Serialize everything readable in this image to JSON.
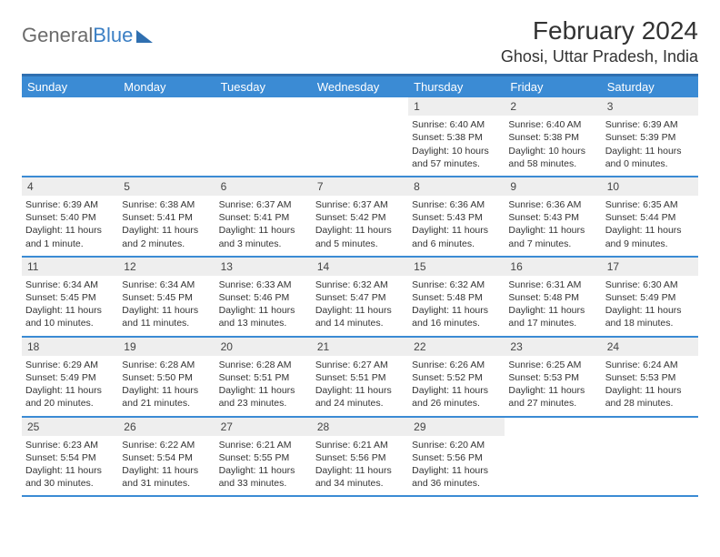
{
  "logo": {
    "textA": "General",
    "textB": "Blue"
  },
  "title": "February 2024",
  "location": "Ghosi, Uttar Pradesh, India",
  "day_headers": [
    "Sunday",
    "Monday",
    "Tuesday",
    "Wednesday",
    "Thursday",
    "Friday",
    "Saturday"
  ],
  "colors": {
    "header_bg": "#3b8bd4",
    "border": "#2f6fb0",
    "daynum_bg": "#eeeeee",
    "text": "#333333"
  },
  "weeks": [
    [
      {
        "empty": true
      },
      {
        "empty": true
      },
      {
        "empty": true
      },
      {
        "empty": true
      },
      {
        "day": "1",
        "sunrise": "Sunrise: 6:40 AM",
        "sunset": "Sunset: 5:38 PM",
        "daylight": "Daylight: 10 hours and 57 minutes."
      },
      {
        "day": "2",
        "sunrise": "Sunrise: 6:40 AM",
        "sunset": "Sunset: 5:38 PM",
        "daylight": "Daylight: 10 hours and 58 minutes."
      },
      {
        "day": "3",
        "sunrise": "Sunrise: 6:39 AM",
        "sunset": "Sunset: 5:39 PM",
        "daylight": "Daylight: 11 hours and 0 minutes."
      }
    ],
    [
      {
        "day": "4",
        "sunrise": "Sunrise: 6:39 AM",
        "sunset": "Sunset: 5:40 PM",
        "daylight": "Daylight: 11 hours and 1 minute."
      },
      {
        "day": "5",
        "sunrise": "Sunrise: 6:38 AM",
        "sunset": "Sunset: 5:41 PM",
        "daylight": "Daylight: 11 hours and 2 minutes."
      },
      {
        "day": "6",
        "sunrise": "Sunrise: 6:37 AM",
        "sunset": "Sunset: 5:41 PM",
        "daylight": "Daylight: 11 hours and 3 minutes."
      },
      {
        "day": "7",
        "sunrise": "Sunrise: 6:37 AM",
        "sunset": "Sunset: 5:42 PM",
        "daylight": "Daylight: 11 hours and 5 minutes."
      },
      {
        "day": "8",
        "sunrise": "Sunrise: 6:36 AM",
        "sunset": "Sunset: 5:43 PM",
        "daylight": "Daylight: 11 hours and 6 minutes."
      },
      {
        "day": "9",
        "sunrise": "Sunrise: 6:36 AM",
        "sunset": "Sunset: 5:43 PM",
        "daylight": "Daylight: 11 hours and 7 minutes."
      },
      {
        "day": "10",
        "sunrise": "Sunrise: 6:35 AM",
        "sunset": "Sunset: 5:44 PM",
        "daylight": "Daylight: 11 hours and 9 minutes."
      }
    ],
    [
      {
        "day": "11",
        "sunrise": "Sunrise: 6:34 AM",
        "sunset": "Sunset: 5:45 PM",
        "daylight": "Daylight: 11 hours and 10 minutes."
      },
      {
        "day": "12",
        "sunrise": "Sunrise: 6:34 AM",
        "sunset": "Sunset: 5:45 PM",
        "daylight": "Daylight: 11 hours and 11 minutes."
      },
      {
        "day": "13",
        "sunrise": "Sunrise: 6:33 AM",
        "sunset": "Sunset: 5:46 PM",
        "daylight": "Daylight: 11 hours and 13 minutes."
      },
      {
        "day": "14",
        "sunrise": "Sunrise: 6:32 AM",
        "sunset": "Sunset: 5:47 PM",
        "daylight": "Daylight: 11 hours and 14 minutes."
      },
      {
        "day": "15",
        "sunrise": "Sunrise: 6:32 AM",
        "sunset": "Sunset: 5:48 PM",
        "daylight": "Daylight: 11 hours and 16 minutes."
      },
      {
        "day": "16",
        "sunrise": "Sunrise: 6:31 AM",
        "sunset": "Sunset: 5:48 PM",
        "daylight": "Daylight: 11 hours and 17 minutes."
      },
      {
        "day": "17",
        "sunrise": "Sunrise: 6:30 AM",
        "sunset": "Sunset: 5:49 PM",
        "daylight": "Daylight: 11 hours and 18 minutes."
      }
    ],
    [
      {
        "day": "18",
        "sunrise": "Sunrise: 6:29 AM",
        "sunset": "Sunset: 5:49 PM",
        "daylight": "Daylight: 11 hours and 20 minutes."
      },
      {
        "day": "19",
        "sunrise": "Sunrise: 6:28 AM",
        "sunset": "Sunset: 5:50 PM",
        "daylight": "Daylight: 11 hours and 21 minutes."
      },
      {
        "day": "20",
        "sunrise": "Sunrise: 6:28 AM",
        "sunset": "Sunset: 5:51 PM",
        "daylight": "Daylight: 11 hours and 23 minutes."
      },
      {
        "day": "21",
        "sunrise": "Sunrise: 6:27 AM",
        "sunset": "Sunset: 5:51 PM",
        "daylight": "Daylight: 11 hours and 24 minutes."
      },
      {
        "day": "22",
        "sunrise": "Sunrise: 6:26 AM",
        "sunset": "Sunset: 5:52 PM",
        "daylight": "Daylight: 11 hours and 26 minutes."
      },
      {
        "day": "23",
        "sunrise": "Sunrise: 6:25 AM",
        "sunset": "Sunset: 5:53 PM",
        "daylight": "Daylight: 11 hours and 27 minutes."
      },
      {
        "day": "24",
        "sunrise": "Sunrise: 6:24 AM",
        "sunset": "Sunset: 5:53 PM",
        "daylight": "Daylight: 11 hours and 28 minutes."
      }
    ],
    [
      {
        "day": "25",
        "sunrise": "Sunrise: 6:23 AM",
        "sunset": "Sunset: 5:54 PM",
        "daylight": "Daylight: 11 hours and 30 minutes."
      },
      {
        "day": "26",
        "sunrise": "Sunrise: 6:22 AM",
        "sunset": "Sunset: 5:54 PM",
        "daylight": "Daylight: 11 hours and 31 minutes."
      },
      {
        "day": "27",
        "sunrise": "Sunrise: 6:21 AM",
        "sunset": "Sunset: 5:55 PM",
        "daylight": "Daylight: 11 hours and 33 minutes."
      },
      {
        "day": "28",
        "sunrise": "Sunrise: 6:21 AM",
        "sunset": "Sunset: 5:56 PM",
        "daylight": "Daylight: 11 hours and 34 minutes."
      },
      {
        "day": "29",
        "sunrise": "Sunrise: 6:20 AM",
        "sunset": "Sunset: 5:56 PM",
        "daylight": "Daylight: 11 hours and 36 minutes."
      },
      {
        "empty": true
      },
      {
        "empty": true
      }
    ]
  ]
}
